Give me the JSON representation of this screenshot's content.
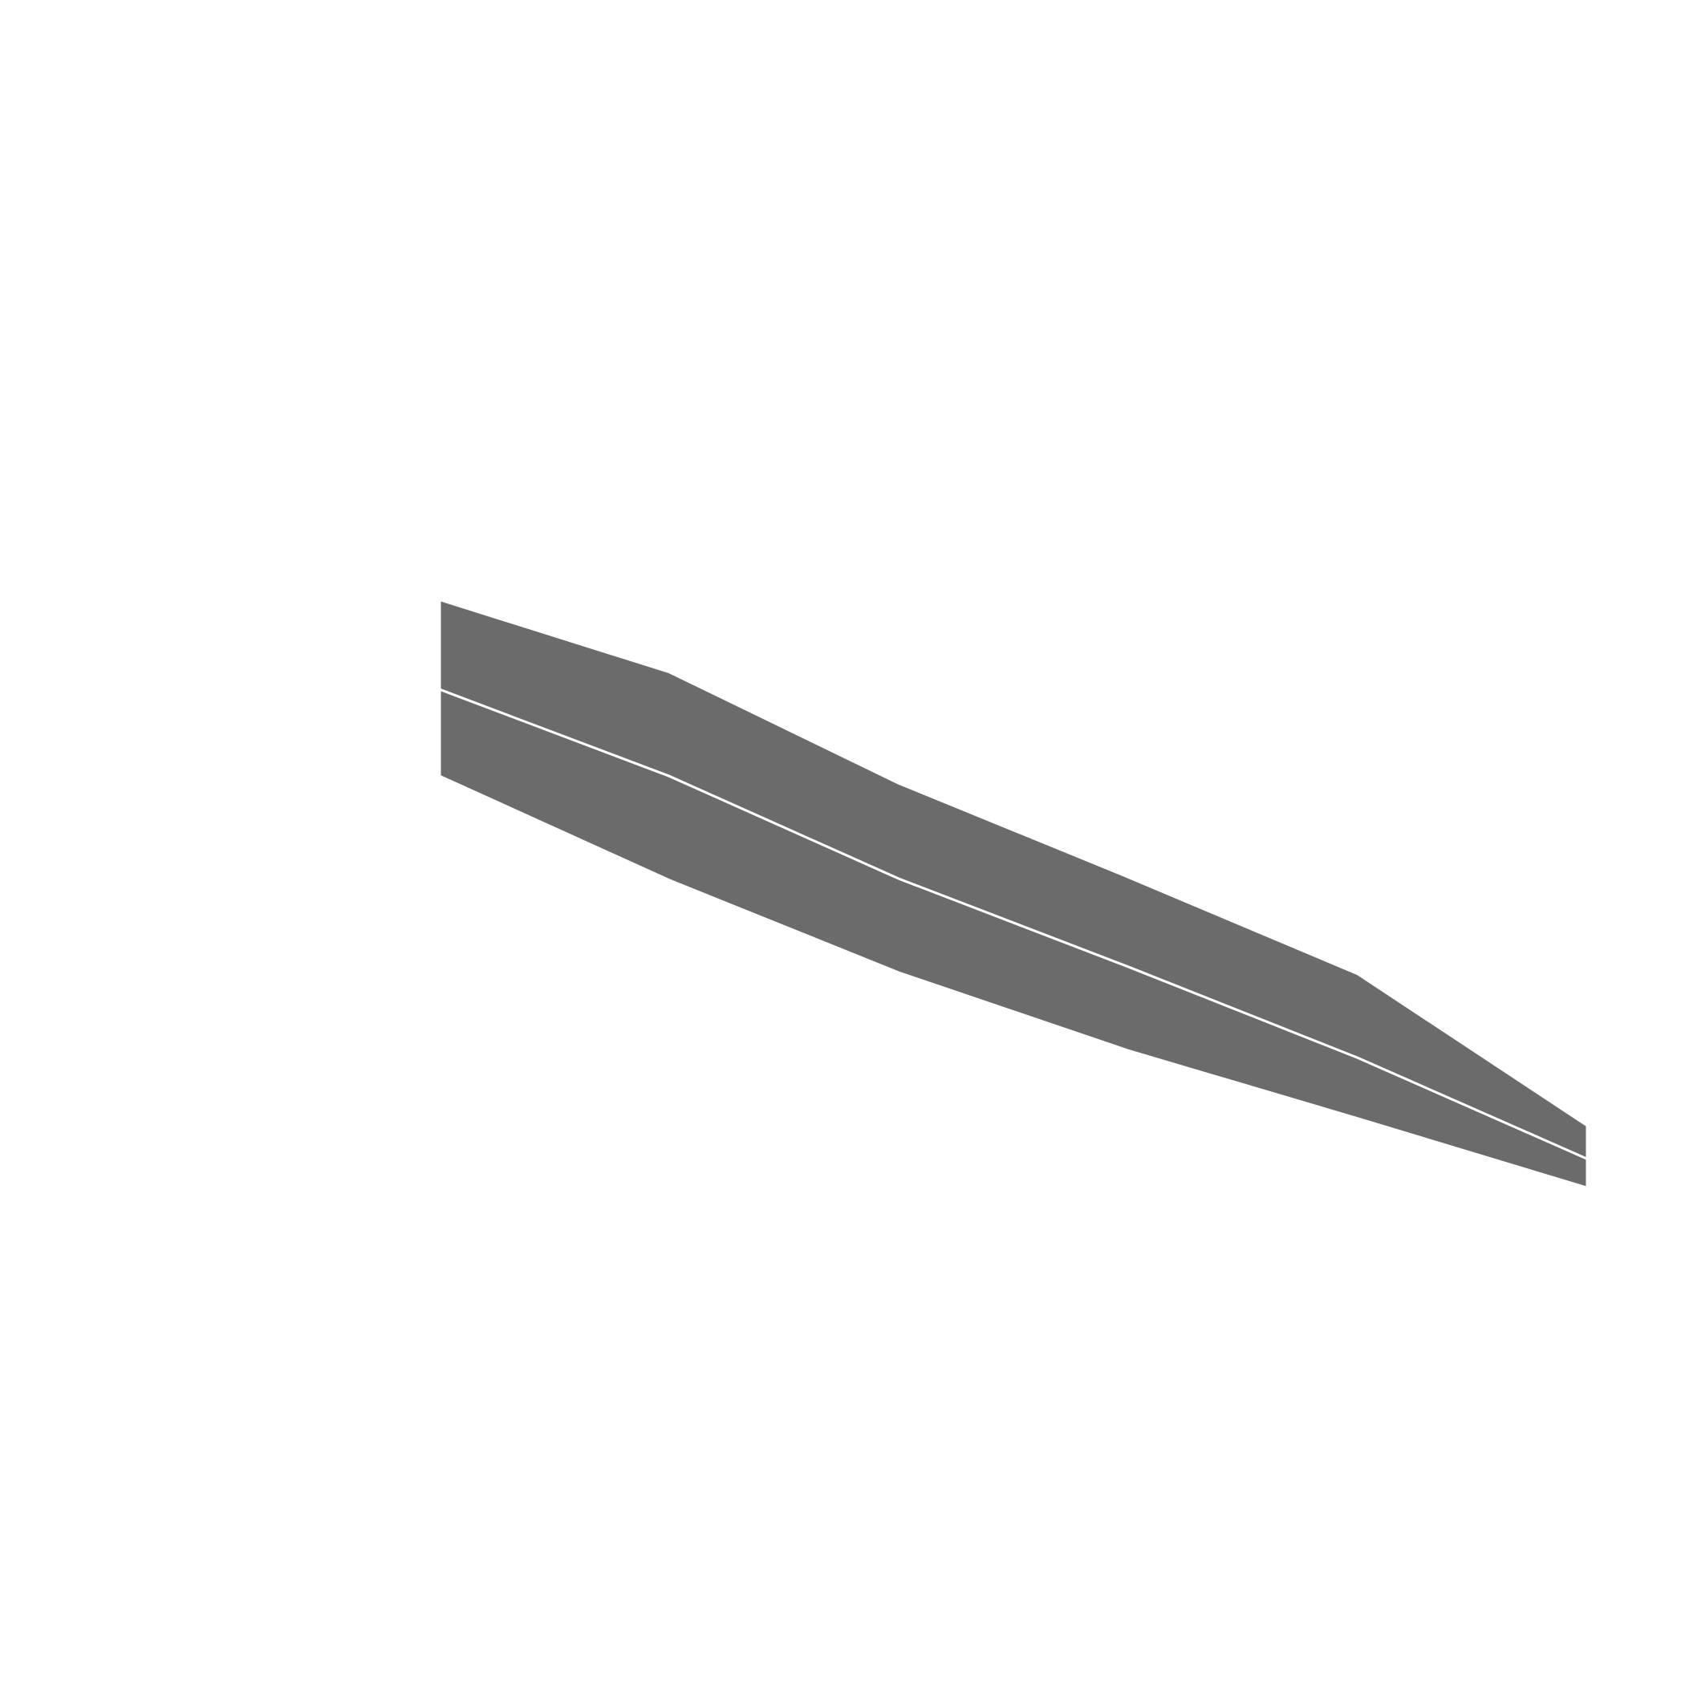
{
  "chart_data": {
    "type": "area",
    "stacked": true,
    "x": [
      1,
      2,
      3,
      4,
      5,
      6
    ],
    "series": [
      {
        "values": [
          60,
          72,
          65,
          58,
          42,
          20
        ],
        "color": "#6b6b6b"
      },
      {
        "values": [
          62,
          72,
          66,
          62,
          58,
          23
        ],
        "color": "#6b6b6b"
      }
    ],
    "base": [
      546,
      474,
      410,
      356,
      309,
      261
    ],
    "xlim": [
      1,
      6
    ],
    "ylim": [
      0,
      1000
    ],
    "grid": false,
    "title": "",
    "xlabel": "",
    "ylabel": "",
    "separator_color": "#ffffff"
  }
}
